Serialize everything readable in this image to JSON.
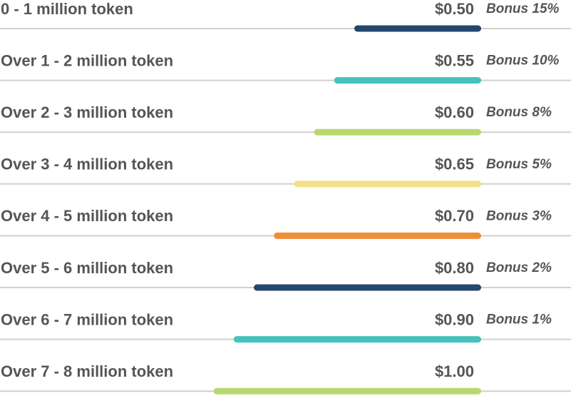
{
  "rows": [
    {
      "label": "0 - 1 million token",
      "price": "$0.50",
      "bonus": "Bonus 15%",
      "color": "#24476e"
    },
    {
      "label": "Over 1 - 2 million token",
      "price": "$0.55",
      "bonus": "Bonus 10%",
      "color": "#45c2bd"
    },
    {
      "label": "Over 2 - 3 million token",
      "price": "$0.60",
      "bonus": "Bonus 8%",
      "color": "#b8d870"
    },
    {
      "label": "Over 3 - 4 million token",
      "price": "$0.65",
      "bonus": "Bonus 5%",
      "color": "#f1e18a"
    },
    {
      "label": "Over 4 - 5 million token",
      "price": "$0.70",
      "bonus": "Bonus 3%",
      "color": "#ee8f37"
    },
    {
      "label": "Over 5 - 6 million token",
      "price": "$0.80",
      "bonus": "Bonus 2%",
      "color": "#24476e"
    },
    {
      "label": "Over 6 - 7 million token",
      "price": "$0.90",
      "bonus": "Bonus 1%",
      "color": "#45c2bd"
    },
    {
      "label": "Over 7 - 8 million token",
      "price": "$1.00",
      "color": "#b8d870"
    }
  ]
}
